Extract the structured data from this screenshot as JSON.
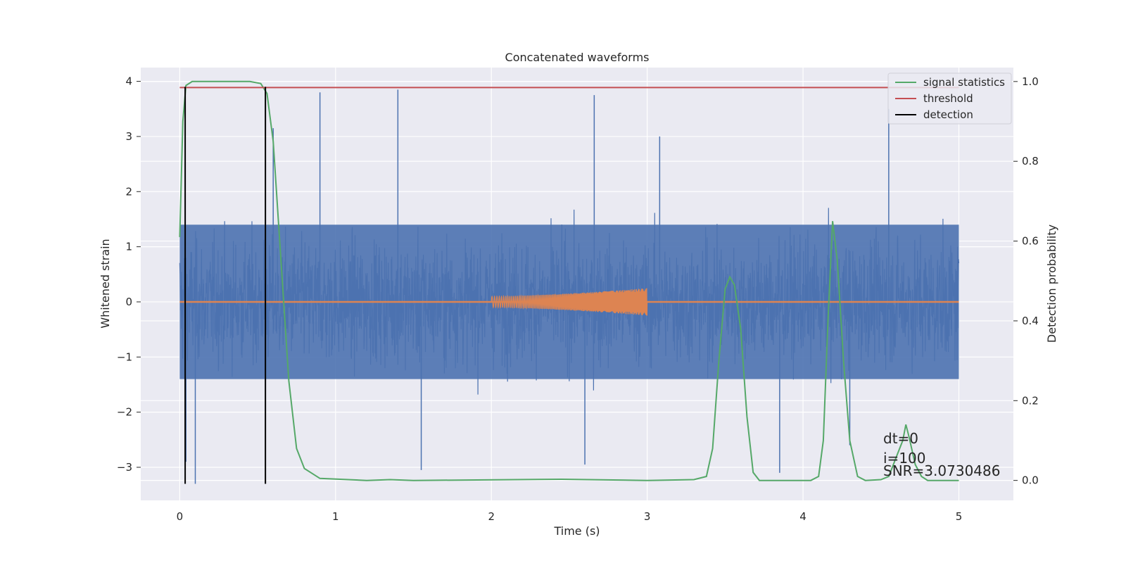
{
  "chart_data": {
    "type": "line",
    "title": "Concatenated waveforms",
    "xlabel": "Time (s)",
    "ylabel": "Whitened strain",
    "y2label": "Detection probability",
    "xlim": [
      -0.25,
      5.35
    ],
    "ylim": [
      -3.6,
      4.25
    ],
    "y2lim": [
      -0.05,
      1.035
    ],
    "x_ticks": [
      0,
      1,
      2,
      3,
      4,
      5
    ],
    "y_ticks": [
      -3,
      -2,
      -1,
      0,
      1,
      2,
      3,
      4
    ],
    "y2_ticks": [
      0.0,
      0.2,
      0.4,
      0.6,
      0.8,
      1.0
    ],
    "y_tick_labels": [
      "−3",
      "−2",
      "−1",
      "0",
      "1",
      "2",
      "3",
      "4"
    ],
    "y2_tick_labels": [
      "0.0",
      "0.2",
      "0.4",
      "0.6",
      "0.8",
      "1.0"
    ],
    "x_tick_labels": [
      "0",
      "1",
      "2",
      "3",
      "4",
      "5"
    ],
    "grid": true,
    "legend_position": "top-right",
    "legend": [
      "signal statistics",
      "threshold",
      "detection"
    ],
    "colors": {
      "strain": "#4c72b0",
      "injection": "#dd8452",
      "signal_statistics": "#55a868",
      "threshold": "#c44e52",
      "detection": "#000000",
      "plot_background": "#eaeaf2",
      "grid": "#ffffff"
    },
    "series": [
      {
        "name": "signal statistics",
        "axis": "right",
        "points": [
          [
            0,
            0.61
          ],
          [
            0.02,
            0.9
          ],
          [
            0.04,
            0.99
          ],
          [
            0.08,
            1.0
          ],
          [
            0.45,
            1.0
          ],
          [
            0.52,
            0.995
          ],
          [
            0.56,
            0.97
          ],
          [
            0.6,
            0.85
          ],
          [
            0.65,
            0.55
          ],
          [
            0.7,
            0.25
          ],
          [
            0.75,
            0.08
          ],
          [
            0.8,
            0.03
          ],
          [
            0.9,
            0.005
          ],
          [
            1.2,
            0.0
          ],
          [
            1.35,
            0.002
          ],
          [
            1.5,
            0.0
          ],
          [
            2.45,
            0.003
          ],
          [
            3.0,
            0.0
          ],
          [
            3.3,
            0.002
          ],
          [
            3.38,
            0.01
          ],
          [
            3.42,
            0.08
          ],
          [
            3.46,
            0.3
          ],
          [
            3.5,
            0.48
          ],
          [
            3.53,
            0.51
          ],
          [
            3.56,
            0.49
          ],
          [
            3.6,
            0.38
          ],
          [
            3.64,
            0.16
          ],
          [
            3.68,
            0.02
          ],
          [
            3.72,
            0.0
          ],
          [
            4.05,
            0.0
          ],
          [
            4.1,
            0.01
          ],
          [
            4.13,
            0.1
          ],
          [
            4.16,
            0.4
          ],
          [
            4.19,
            0.65
          ],
          [
            4.22,
            0.55
          ],
          [
            4.26,
            0.3
          ],
          [
            4.3,
            0.1
          ],
          [
            4.35,
            0.01
          ],
          [
            4.4,
            0.0
          ],
          [
            4.5,
            0.002
          ],
          [
            4.55,
            0.01
          ],
          [
            4.6,
            0.06
          ],
          [
            4.64,
            0.1
          ],
          [
            4.66,
            0.14
          ],
          [
            4.68,
            0.11
          ],
          [
            4.72,
            0.04
          ],
          [
            4.76,
            0.01
          ],
          [
            4.8,
            0.0
          ],
          [
            5.0,
            0.0
          ]
        ]
      },
      {
        "name": "threshold",
        "axis": "right",
        "points": [
          [
            0,
            0.985
          ],
          [
            5.0,
            0.985
          ]
        ]
      },
      {
        "name": "detection",
        "axis": "left",
        "segments": [
          [
            0.035,
            -3.3,
            3.9
          ],
          [
            0.55,
            -3.3,
            3.9
          ]
        ]
      }
    ],
    "strain": {
      "axis": "left",
      "x_range": [
        0,
        5
      ],
      "band_low": -1.4,
      "band_high": 1.4,
      "typical_peak": 2.3,
      "spikes": [
        [
          0.9,
          3.8
        ],
        [
          1.4,
          3.85
        ],
        [
          2.66,
          3.75
        ],
        [
          3.08,
          3.0
        ],
        [
          4.55,
          3.5
        ],
        [
          0.6,
          3.15
        ],
        [
          0.1,
          -3.3
        ],
        [
          1.55,
          -3.05
        ],
        [
          2.6,
          -2.95
        ],
        [
          3.85,
          -3.1
        ],
        [
          4.3,
          -2.6
        ],
        [
          0.04,
          -2.9
        ]
      ]
    },
    "injection": {
      "axis": "left",
      "x_range": [
        2.0,
        3.0
      ],
      "amplitude_start": 0.1,
      "amplitude_end": 0.25,
      "baseline": 0
    },
    "annotations": [
      "dt=0",
      "i=100",
      "SNR=3.0730486"
    ]
  }
}
